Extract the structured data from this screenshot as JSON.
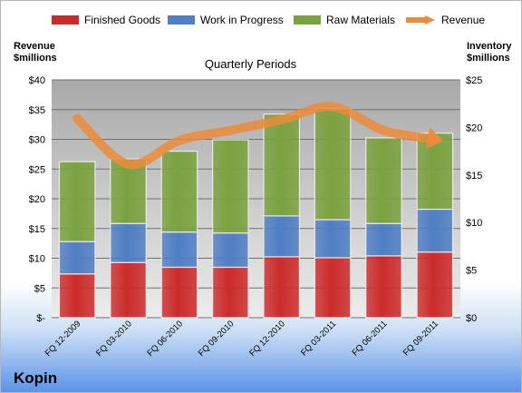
{
  "chart_data": {
    "type": "bar",
    "title": "Quarterly Periods",
    "company": "Kopin",
    "categories": [
      "FQ 12-2009",
      "FQ 03-2010",
      "FQ 06-2010",
      "FQ 09-2010",
      "FQ 12-2010",
      "FQ 03-2011",
      "FQ 06-2011",
      "FQ 09-2011"
    ],
    "stacked_series": [
      {
        "name": "Finished Goods",
        "color": "#cc2b2b",
        "values": [
          4.6,
          5.8,
          5.3,
          5.3,
          6.4,
          6.3,
          6.5,
          6.9
        ]
      },
      {
        "name": "Work in Progress",
        "color": "#4f7ec4",
        "values": [
          3.4,
          4.1,
          3.7,
          3.6,
          4.3,
          4.0,
          3.4,
          4.5
        ]
      },
      {
        "name": "Raw Materials",
        "color": "#7aa23f",
        "values": [
          8.4,
          6.8,
          8.5,
          9.8,
          10.7,
          11.7,
          9.0,
          8.0
        ]
      }
    ],
    "line_series": {
      "name": "Revenue",
      "color": "#ec8b3c",
      "values": [
        33.5,
        25.8,
        29.8,
        31.5,
        33.3,
        35.5,
        31.5,
        30.0
      ]
    },
    "left_axis": {
      "label_line1": "Revenue",
      "label_line2": "$millions",
      "min": 0,
      "max": 40,
      "ticks": [
        "$-",
        "$5",
        "$10",
        "$15",
        "$20",
        "$25",
        "$30",
        "$35",
        "$40"
      ]
    },
    "right_axis": {
      "label_line1": "Inventory",
      "label_line2": "$millions",
      "min": 0,
      "max": 25,
      "ticks": [
        "$0",
        "$5",
        "$10",
        "$15",
        "$20",
        "$25"
      ]
    },
    "grid": true,
    "legend_position": "top"
  }
}
